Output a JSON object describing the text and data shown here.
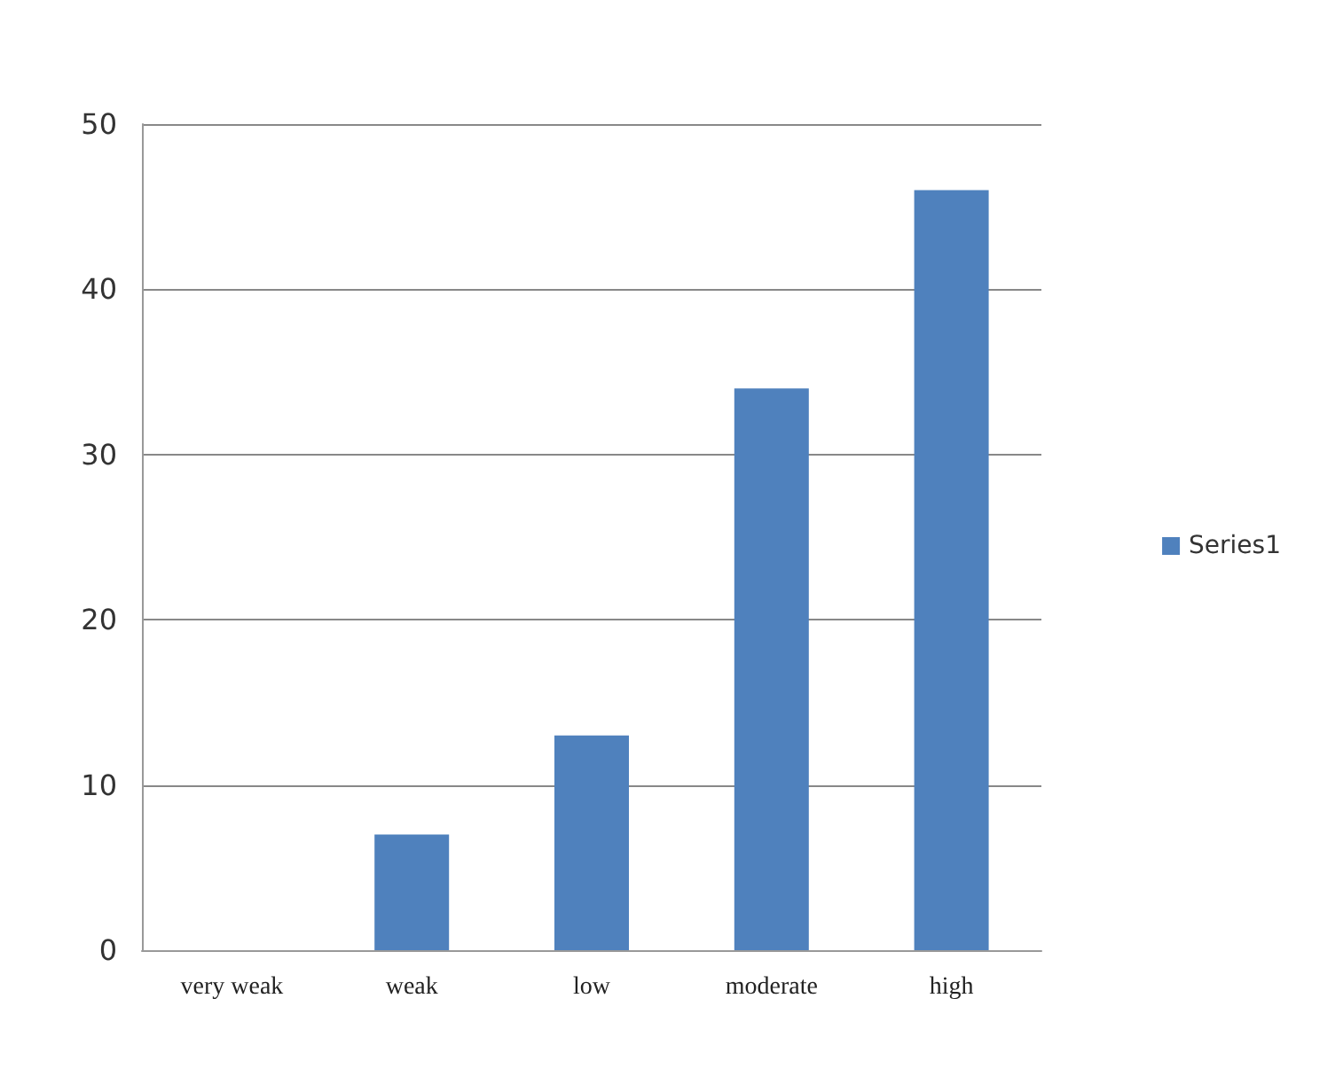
{
  "chart_data": {
    "type": "bar",
    "categories": [
      "very weak",
      "weak",
      "low",
      "moderate",
      "high"
    ],
    "series": [
      {
        "name": "Series1",
        "color": "#4f81bd",
        "values": [
          0,
          7,
          13,
          34,
          46
        ]
      }
    ],
    "ylim": [
      0,
      50
    ],
    "yticks": [
      0,
      10,
      20,
      30,
      40,
      50
    ],
    "grid": "y",
    "legend": "right"
  }
}
